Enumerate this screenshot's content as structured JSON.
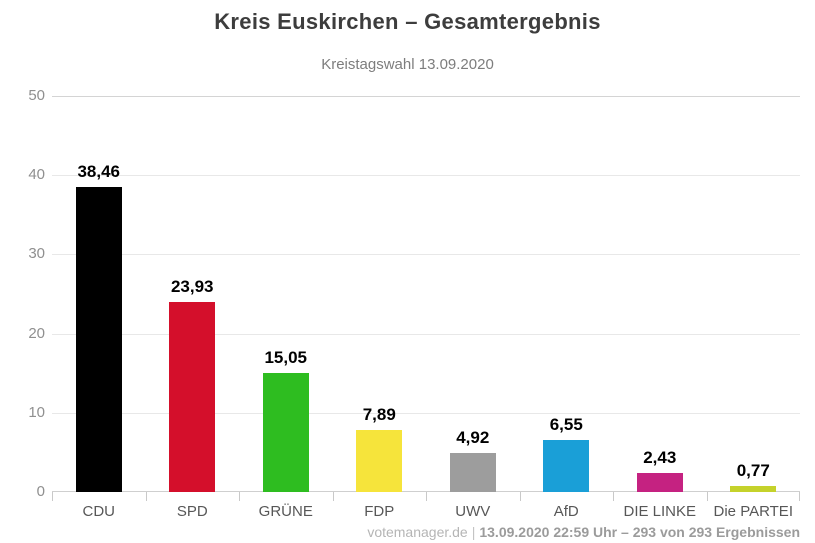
{
  "title": "Kreis Euskirchen – Gesamtergebnis",
  "subtitle": "Kreistagswahl 13.09.2020",
  "footer": {
    "source": "votemanager.de",
    "separator": "|",
    "status": "13.09.2020 22:59 Uhr – 293 von 293 Ergebnissen"
  },
  "chart_data": {
    "type": "bar",
    "title": "Kreis Euskirchen – Gesamtergebnis",
    "subtitle": "Kreistagswahl 13.09.2020",
    "categories": [
      "CDU",
      "SPD",
      "GRÜNE",
      "FDP",
      "UWV",
      "AfD",
      "DIE LINKE",
      "Die PARTEI"
    ],
    "values": [
      38.46,
      23.93,
      15.05,
      7.89,
      4.92,
      6.55,
      2.43,
      0.77
    ],
    "value_labels": [
      "38,46",
      "23,93",
      "15,05",
      "7,89",
      "4,92",
      "6,55",
      "2,43",
      "0,77"
    ],
    "bar_colors": [
      "#000000",
      "#d40f2b",
      "#2ebd20",
      "#f6e43b",
      "#9d9d9d",
      "#1a9fd7",
      "#c52281",
      "#c5d22b"
    ],
    "xlabel": "",
    "ylabel": "",
    "ylim": [
      0,
      50
    ],
    "yticks": [
      0,
      10,
      20,
      30,
      40,
      50
    ],
    "grid": true,
    "legend_position": "none",
    "unit": "percent"
  }
}
